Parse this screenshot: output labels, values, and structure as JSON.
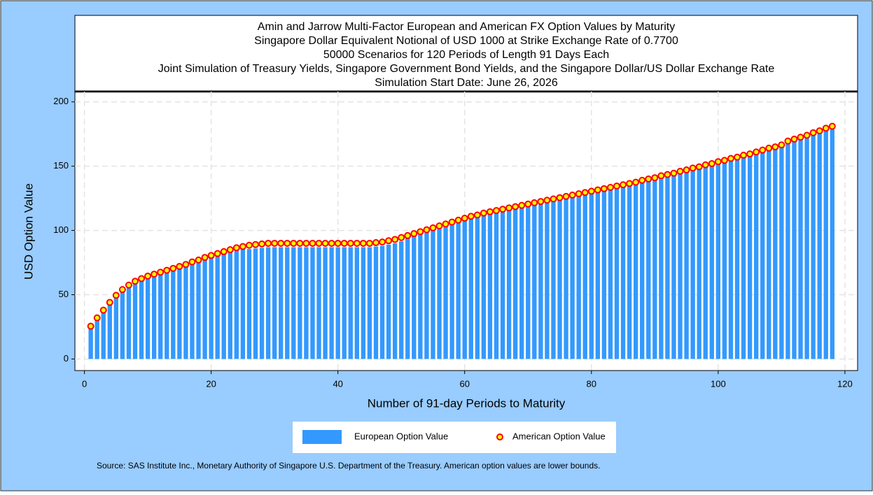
{
  "chart_data": {
    "type": "bar_scatter",
    "title": [
      "Amin and Jarrow Multi-Factor European and American FX Option Values by Maturity",
      "Singapore Dollar Equivalent Notional of USD 1000 at Strike Exchange Rate of  0.7700",
      "50000 Scenarios for 120 Periods of Length 91 Days Each",
      "Joint Simulation of Treasury Yields, Singapore Government Bond Yields, and the Singapore Dollar/US Dollar Exchange Rate",
      "Simulation Start Date: June 26, 2026"
    ],
    "x_label": "Number of 91-day Periods to Maturity",
    "y_label": "USD Option Value",
    "note": "Source: SAS Institute Inc., Monetary Authority of Singapore U.S. Department of the Treasury. American option values are lower bounds.",
    "x": [
      1,
      2,
      3,
      4,
      5,
      6,
      7,
      8,
      9,
      10,
      11,
      12,
      13,
      14,
      15,
      16,
      17,
      18,
      19,
      20,
      21,
      22,
      23,
      24,
      25,
      26,
      27,
      28,
      29,
      30,
      31,
      32,
      33,
      34,
      35,
      36,
      37,
      38,
      39,
      40,
      41,
      42,
      43,
      44,
      45,
      46,
      47,
      48,
      49,
      50,
      51,
      52,
      53,
      54,
      55,
      56,
      57,
      58,
      59,
      60,
      61,
      62,
      63,
      64,
      65,
      66,
      67,
      68,
      69,
      70,
      71,
      72,
      73,
      74,
      75,
      76,
      77,
      78,
      79,
      80,
      81,
      82,
      83,
      84,
      85,
      86,
      87,
      88,
      89,
      90,
      91,
      92,
      93,
      94,
      95,
      96,
      97,
      98,
      99,
      100,
      101,
      102,
      103,
      104,
      105,
      106,
      107,
      108,
      109,
      110,
      111,
      112,
      113,
      114,
      115,
      116,
      117,
      118
    ],
    "series": [
      {
        "name": "European Option Value",
        "color": "#3399ff",
        "mark": "bar",
        "values": [
          24,
          30.5,
          36.5,
          42.5,
          48,
          52.5,
          56,
          59,
          61,
          63,
          64,
          65.5,
          67,
          68.5,
          70,
          71.5,
          73.5,
          75,
          77,
          78.5,
          80,
          81.5,
          83,
          84.5,
          85.5,
          85.5,
          86,
          86.5,
          87,
          87,
          87,
          87,
          87,
          87,
          87,
          87,
          87,
          87,
          87,
          87,
          87,
          87,
          87,
          87,
          87,
          87.5,
          88,
          89,
          90,
          91.5,
          94,
          95.5,
          97,
          98.5,
          100,
          101.5,
          103,
          104.5,
          106,
          107.5,
          109.5,
          110.5,
          112,
          113,
          114,
          115,
          116,
          117,
          118,
          119,
          120,
          121,
          122,
          123,
          124,
          125,
          126,
          127,
          128,
          129,
          130,
          131,
          132,
          133,
          134,
          135,
          136,
          137.5,
          138.5,
          139.5,
          141,
          142,
          143,
          144.5,
          145.5,
          147,
          148,
          149.5,
          150.5,
          152,
          153,
          154.5,
          155.5,
          157,
          158,
          159.5,
          161,
          162.5,
          163.5,
          165,
          168,
          169.5,
          171,
          172.5,
          174.5,
          176,
          178,
          179.5
        ]
      },
      {
        "name": "American Option Value",
        "color": "#ff0000",
        "fill": "#ffff00",
        "mark": "marker",
        "values": [
          25.5,
          32,
          38,
          44,
          49.5,
          54,
          57.5,
          60.5,
          62.5,
          64.5,
          66,
          67.5,
          69,
          70.5,
          72,
          73.5,
          75.5,
          77,
          79,
          80.5,
          82,
          83.5,
          85,
          86.5,
          87.5,
          88.5,
          89,
          89.5,
          90,
          90,
          90,
          90,
          90,
          90,
          90,
          90,
          90,
          90,
          90,
          90,
          90,
          90,
          90,
          90,
          90,
          90.5,
          91,
          92,
          93,
          94.5,
          96,
          97.5,
          99,
          100.5,
          102,
          103.5,
          105,
          106.5,
          108,
          109.5,
          111,
          112,
          113.5,
          114.5,
          115.5,
          116.5,
          117.5,
          118.5,
          119.5,
          120.5,
          121.5,
          122.5,
          123.5,
          124.5,
          125.5,
          126.5,
          127.5,
          128.5,
          129.5,
          130.5,
          131.5,
          132.5,
          133.5,
          134.5,
          135.5,
          136.5,
          137.5,
          139,
          140,
          141,
          142.5,
          143.5,
          144.5,
          146,
          147,
          148.5,
          149.5,
          151,
          152,
          153.5,
          154.5,
          156,
          157,
          158.5,
          159.5,
          161,
          162.5,
          164,
          165,
          166.5,
          169.5,
          171,
          172.5,
          174,
          176,
          177.5,
          179.5,
          181
        ]
      }
    ],
    "xlim": [
      -1.5,
      122
    ],
    "ylim": [
      -9,
      208
    ],
    "xticks": [
      0,
      20,
      40,
      60,
      80,
      100,
      120
    ],
    "yticks": [
      0,
      50,
      100,
      150,
      200
    ],
    "grid": true
  }
}
